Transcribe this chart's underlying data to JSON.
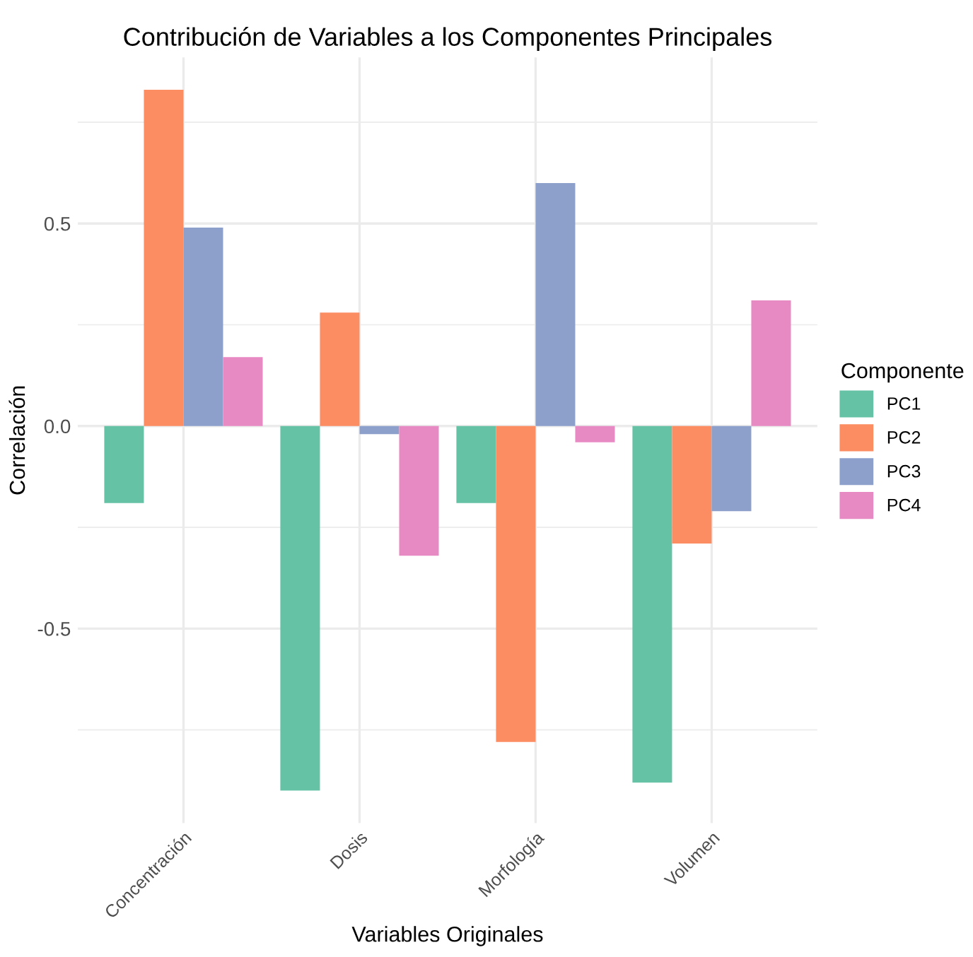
{
  "chart_data": {
    "type": "bar",
    "title": "Contribución de Variables a los Componentes Principales",
    "xlabel": "Variables Originales",
    "ylabel": "Correlación",
    "legend_title": "Componente",
    "categories": [
      "Concentración",
      "Dosis",
      "Morfología",
      "Volumen"
    ],
    "series": [
      {
        "name": "PC1",
        "color": "#66c2a5",
        "values": [
          -0.19,
          -0.9,
          -0.19,
          -0.88
        ]
      },
      {
        "name": "PC2",
        "color": "#fc8d62",
        "values": [
          0.83,
          0.28,
          -0.78,
          -0.29
        ]
      },
      {
        "name": "PC3",
        "color": "#8da0cb",
        "values": [
          0.49,
          -0.02,
          0.6,
          -0.21
        ]
      },
      {
        "name": "PC4",
        "color": "#e78ac3",
        "values": [
          0.17,
          -0.32,
          -0.04,
          0.31
        ]
      }
    ],
    "ylim": [
      -0.98,
      0.91
    ],
    "yticks": [
      {
        "value": -0.75,
        "label": null
      },
      -0.5,
      {
        "value": -0.25,
        "label": null
      },
      {
        "value": 0.0,
        "label": "0.0"
      },
      {
        "value": 0.25,
        "label": null
      },
      0.5,
      {
        "value": 0.75,
        "label": null
      }
    ],
    "grid": true,
    "legend": "right"
  }
}
